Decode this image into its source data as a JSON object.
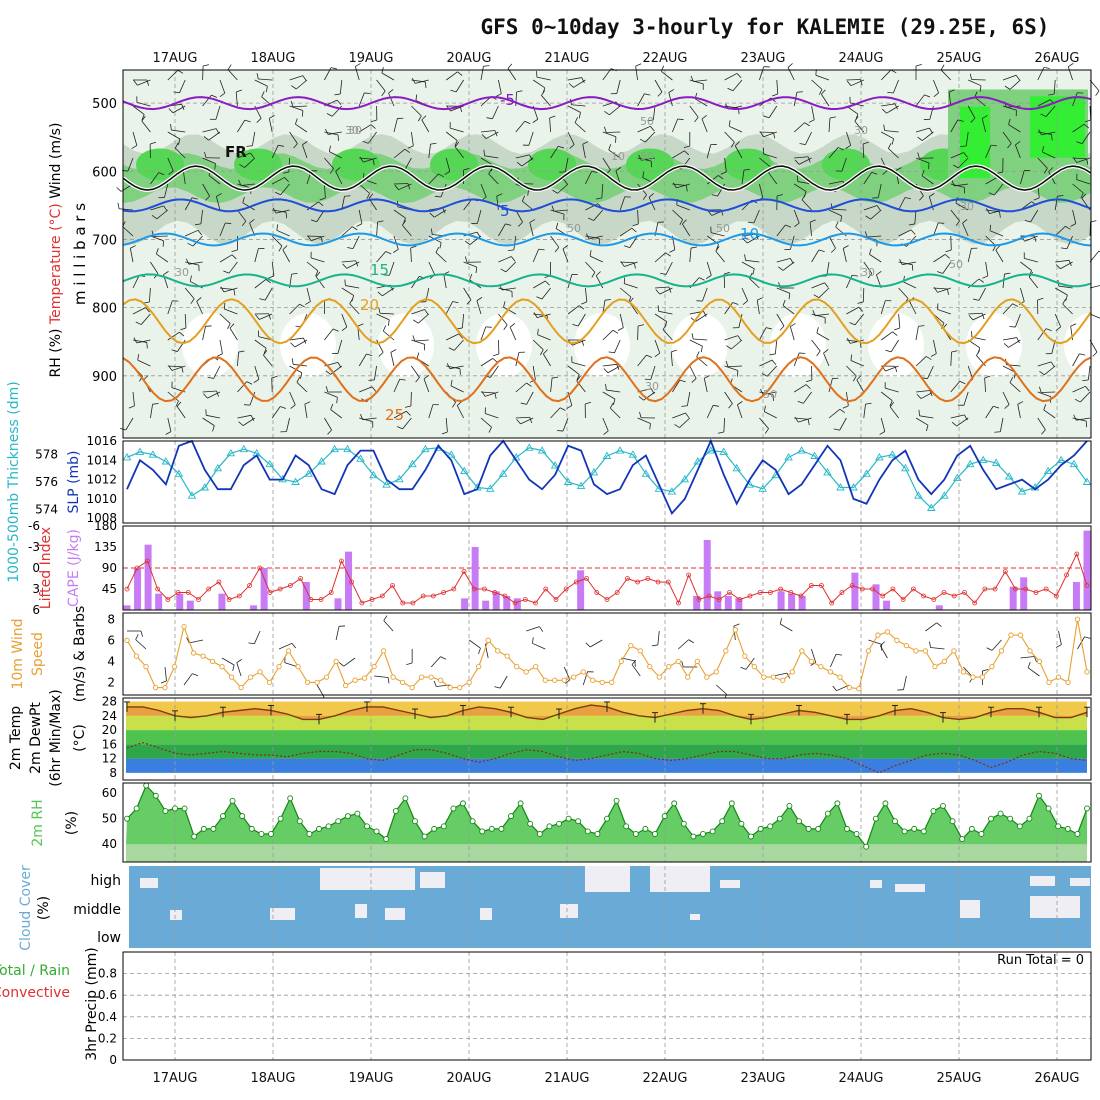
{
  "title": "GFS 0~10day 3-hourly for KALEMIE (29.25E, 6S)",
  "colors": {
    "purple": "#8a1cc2",
    "black": "#111111",
    "blue5": "#1f4fd8",
    "blue10": "#1e98e8",
    "green15": "#17b38a",
    "orange20": "#e3a020",
    "orange25": "#e0701a",
    "slp": "#1236b8",
    "thickness": "#27b8c8",
    "cape": "#c77cf5",
    "li": "#e03030",
    "wind": "#e8a030",
    "rh": "#55c555",
    "cloud": "#6aaad6",
    "precip_green": "#33aa33",
    "precip_red": "#e03030"
  },
  "chart_data": [
    {
      "type": "heatmap",
      "name": "upper-air",
      "ylabel_parts": [
        "Wind (m/s)",
        "Temperature (°C)",
        "RH (%)"
      ],
      "yaxis_label": "m i l l i b a r s",
      "y_ticks": [
        500,
        600,
        700,
        800,
        900
      ],
      "ylim": [
        1000,
        450
      ],
      "x_dates": [
        "17AUG",
        "18AUG",
        "19AUG",
        "20AUG",
        "21AUG",
        "22AUG",
        "23AUG",
        "24AUG",
        "25AUG",
        "26AUG"
      ],
      "contour_labels": [
        {
          "text": "-5",
          "level": -5
        },
        {
          "text": "FR",
          "level": 0
        },
        {
          "text": "5",
          "level": 5
        },
        {
          "text": "10",
          "level": 10
        },
        {
          "text": "15",
          "level": 15
        },
        {
          "text": "20",
          "level": 20
        },
        {
          "text": "25",
          "level": 25
        }
      ],
      "temperature_isotherms_mb": {
        "-5": 500,
        "0": 610,
        "5": 650,
        "10": 700,
        "15": 760,
        "20": 820,
        "25": 905
      },
      "rh_labels": [
        "30",
        "50",
        "10",
        "30",
        "50",
        "50",
        "30",
        "50",
        "30",
        "50",
        "30",
        "30",
        "50",
        "30"
      ],
      "grid": true
    },
    {
      "type": "line",
      "name": "slp-thickness",
      "ylabel_left": "1000-500mb Thickness (dm)",
      "ylabel_right": "SLP (mb)",
      "left_ticks": [
        574,
        576,
        578
      ],
      "right_ticks": [
        1008,
        1010,
        1012,
        1014,
        1016
      ],
      "ylim_right": [
        1007.5,
        1016
      ],
      "ylim_left": [
        573,
        579
      ],
      "series": [
        {
          "name": "SLP",
          "values": [
            1011,
            1014,
            1013,
            1011.5,
            1015.5,
            1016,
            1013,
            1011,
            1011,
            1013.5,
            1014.5,
            1012,
            1012,
            1014.5,
            1013.5,
            1011,
            1010.5,
            1013.5,
            1015,
            1015,
            1012,
            1011,
            1011,
            1013,
            1015.5,
            1014,
            1010.5,
            1011,
            1014.5,
            1016,
            1014,
            1012,
            1011,
            1012.5,
            1015.5,
            1015,
            1011.5,
            1010.5,
            1011,
            1013.5,
            1014.5,
            1011.5,
            1008.5,
            1010,
            1013,
            1016,
            1012.5,
            1009.5,
            1012,
            1014,
            1013,
            1010.5,
            1011.5,
            1013.5,
            1015.5,
            1014,
            1010,
            1009.5,
            1012,
            1014,
            1015,
            1012,
            1010.5,
            1012,
            1014.5,
            1015.5,
            1013,
            1011,
            1011.5,
            1012,
            1011,
            1012,
            1013.5,
            1014.5,
            1016
          ]
        },
        {
          "name": "Thickness",
          "values": [
            577.8,
            578.2,
            578,
            577.5,
            576.6,
            575,
            575.6,
            577,
            578.1,
            578.4,
            578.1,
            577.3,
            576.2,
            576,
            576.6,
            577.5,
            578.4,
            578.4,
            577.7,
            576.5,
            575.8,
            576.2,
            577.3,
            578.4,
            578.5,
            578,
            576.8,
            575.6,
            575.5,
            576.6,
            577.8,
            578.5,
            578.3,
            577.2,
            576,
            575.7,
            576.7,
            577.9,
            578.3,
            578,
            576.6,
            575.5,
            575.3,
            576.2,
            577.5,
            578.3,
            578.2,
            577,
            575.8,
            575.5,
            576.5,
            577.8,
            578.3,
            577.9,
            576.7,
            575.6,
            575.6,
            576.6,
            577.8,
            578,
            577,
            575,
            574.1,
            575,
            576.3,
            577.3,
            577.6,
            577.4,
            576.4,
            575.3,
            575.6,
            576.8,
            577.6,
            577.3,
            576
          ]
        }
      ]
    },
    {
      "type": "bar",
      "name": "cape-li",
      "ylabel_left": "Lifted Index",
      "ylabel_right": "CAPE (J/kg)",
      "li_ticks": [
        -6,
        -3,
        0,
        3,
        6
      ],
      "cape_ticks": [
        45,
        90,
        135,
        180
      ],
      "cape_ylim": [
        0,
        180
      ],
      "li_ylim": [
        6,
        -6
      ],
      "series": [
        {
          "name": "CAPE",
          "values": [
            10,
            90,
            140,
            35,
            0,
            35,
            20,
            0,
            0,
            35,
            0,
            0,
            10,
            90,
            0,
            0,
            0,
            60,
            0,
            0,
            25,
            125,
            0,
            0,
            0,
            0,
            0,
            0,
            0,
            0,
            0,
            0,
            25,
            135,
            20,
            40,
            30,
            25,
            0,
            0,
            0,
            0,
            0,
            85,
            0,
            0,
            0,
            0,
            0,
            0,
            0,
            0,
            0,
            0,
            30,
            150,
            40,
            30,
            25,
            0,
            0,
            0,
            40,
            35,
            30,
            0,
            0,
            0,
            0,
            80,
            0,
            55,
            20,
            0,
            0,
            0,
            0,
            10,
            0,
            0,
            0,
            0,
            0,
            0,
            50,
            70,
            0,
            0,
            0,
            0,
            60,
            170
          ]
        },
        {
          "name": "Lifted Index",
          "values": [
            3,
            0,
            -1,
            3,
            4.5,
            3.5,
            3.5,
            4.5,
            3,
            2,
            4.5,
            4,
            2.5,
            0,
            3.5,
            3,
            2.5,
            1.5,
            4.5,
            4.5,
            3.5,
            -1,
            2,
            5,
            4.5,
            4,
            2.5,
            5,
            5,
            4,
            4,
            3.5,
            3,
            0.5,
            3,
            3,
            3.5,
            4,
            5,
            4.5,
            5,
            3,
            4.5,
            3,
            2,
            1.5,
            3.5,
            4.5,
            3.5,
            1.5,
            2,
            1.5,
            2,
            2,
            5,
            1,
            4.5,
            4,
            4.5,
            3.5,
            4.5,
            4,
            3.5,
            3.5,
            3,
            3.5,
            4,
            2.5,
            2.5,
            5,
            3.5,
            2.5,
            3,
            3,
            4,
            3,
            4.5,
            3,
            4,
            4.5,
            3.5,
            4,
            3.5,
            5,
            3,
            3,
            0.5,
            3,
            3,
            3.5,
            3,
            4,
            1,
            -2,
            2.5
          ]
        }
      ]
    },
    {
      "type": "line",
      "name": "10m-wind",
      "ylabel": "10m Wind Speed (m/s) & Barbs",
      "y_ticks": [
        2,
        4,
        6,
        8
      ],
      "ylim": [
        0.8,
        8.6
      ],
      "series": [
        {
          "name": "10m Wind Speed",
          "values": [
            6,
            4.5,
            3.5,
            1.5,
            1.5,
            3.5,
            7.3,
            4.8,
            4.5,
            4,
            3.5,
            2.5,
            1.5,
            2.5,
            3,
            2,
            3.5,
            5,
            3.5,
            2,
            2,
            2.5,
            4,
            1.7,
            2.2,
            2.4,
            3.5,
            5,
            2.5,
            2,
            1.5,
            2.5,
            2.5,
            2.2,
            1.5,
            1.5,
            2,
            3.5,
            6,
            5,
            4.5,
            3.5,
            3,
            3.5,
            2.2,
            2.2,
            2.2,
            2.5,
            3,
            2.2,
            2,
            2,
            4,
            5.5,
            5,
            3.5,
            2.5,
            3.5,
            4,
            2.5,
            4,
            2.5,
            3,
            5,
            7,
            4.5,
            3.5,
            2.5,
            2.5,
            2.2,
            3,
            5,
            4,
            3.5,
            3,
            2.5,
            1.5,
            1.4,
            5,
            6.5,
            6.8,
            6,
            5.5,
            5,
            5,
            3.5,
            4,
            5,
            3,
            2.5,
            2.5,
            3.5,
            5,
            6.5,
            6.5,
            5,
            4,
            2,
            2.5,
            2,
            8,
            3
          ]
        }
      ]
    },
    {
      "type": "area",
      "name": "2m-temp",
      "ylabel": "2m Temp 2m DewPt (6hr Min/Max) (°C)",
      "y_ticks": [
        8,
        12,
        16,
        20,
        24,
        28
      ],
      "ylim": [
        6,
        29
      ],
      "series": [
        {
          "name": "2m Temp",
          "values": [
            26.5,
            26.5,
            25.5,
            24,
            23.5,
            24,
            25,
            25.5,
            26,
            25.5,
            24.5,
            23,
            23,
            24,
            25.5,
            26.5,
            26.5,
            25.5,
            24.5,
            23.5,
            24,
            25.5,
            26.5,
            26,
            25,
            23.5,
            23,
            24.5,
            26,
            27,
            26.5,
            25,
            24,
            23.5,
            24.5,
            25.5,
            26,
            25.5,
            24,
            23,
            23.5,
            24.5,
            25.5,
            25,
            24,
            23,
            23,
            24,
            25.5,
            26,
            25,
            23.5,
            23,
            23.5,
            25,
            26,
            26,
            25,
            23.5,
            23.5,
            25
          ]
        },
        {
          "name": "2m DewPt",
          "values": [
            15,
            16.5,
            15,
            13.5,
            13,
            13.5,
            14,
            13.5,
            13,
            13,
            12.5,
            13.5,
            14,
            14,
            13.5,
            12,
            11.5,
            13,
            14.5,
            14.5,
            13.5,
            12,
            11,
            12,
            13.5,
            14.5,
            14,
            12.5,
            11.5,
            12,
            13,
            14,
            13.5,
            12,
            11.5,
            12,
            13,
            14,
            14,
            13,
            12,
            12,
            13,
            13.5,
            13,
            12,
            10,
            8,
            10,
            11.5,
            13,
            13.5,
            13,
            11.5,
            9.5,
            11,
            13,
            14,
            13.5,
            12,
            11.5
          ]
        }
      ]
    },
    {
      "type": "area",
      "name": "2m-rh",
      "ylabel": "2m RH (%)",
      "y_ticks": [
        40,
        50,
        60
      ],
      "ylim": [
        33,
        64
      ],
      "series": [
        {
          "name": "2m RH",
          "values": [
            50,
            54,
            63,
            59,
            53,
            54,
            54,
            43,
            46,
            46,
            51,
            57,
            51,
            46,
            44,
            44,
            50,
            58,
            49,
            44,
            46,
            47,
            49,
            51,
            52,
            47,
            45,
            42,
            53,
            58,
            49,
            43,
            46,
            47,
            54,
            56,
            49,
            45,
            46,
            46,
            51,
            56,
            48,
            44,
            47,
            48,
            50,
            49,
            45,
            44,
            50,
            57,
            47,
            44,
            46,
            44,
            51,
            56,
            48,
            43,
            44,
            45,
            49,
            56,
            48,
            43,
            46,
            47,
            50,
            55,
            49,
            46,
            46,
            52,
            56,
            46,
            44,
            39,
            50,
            56,
            49,
            45,
            46,
            45,
            53,
            55,
            49,
            42,
            46,
            44,
            50,
            52,
            50,
            47,
            50,
            59,
            54,
            47,
            46,
            44,
            54
          ]
        }
      ]
    },
    {
      "type": "heatmap",
      "name": "cloud-cover",
      "ylabel": "Cloud Cover (%)",
      "levels": [
        "high",
        "middle",
        "low"
      ]
    },
    {
      "type": "bar",
      "name": "precip",
      "ylabel": "3hr Precip (mm)",
      "ylabel_left_parts": [
        "Total / Rain",
        "Convective"
      ],
      "y_ticks": [
        0,
        0.2,
        0.4,
        0.6,
        0.8
      ],
      "ylim": [
        0,
        1.0
      ],
      "run_total_label": "Run Total = 0",
      "values": []
    }
  ]
}
